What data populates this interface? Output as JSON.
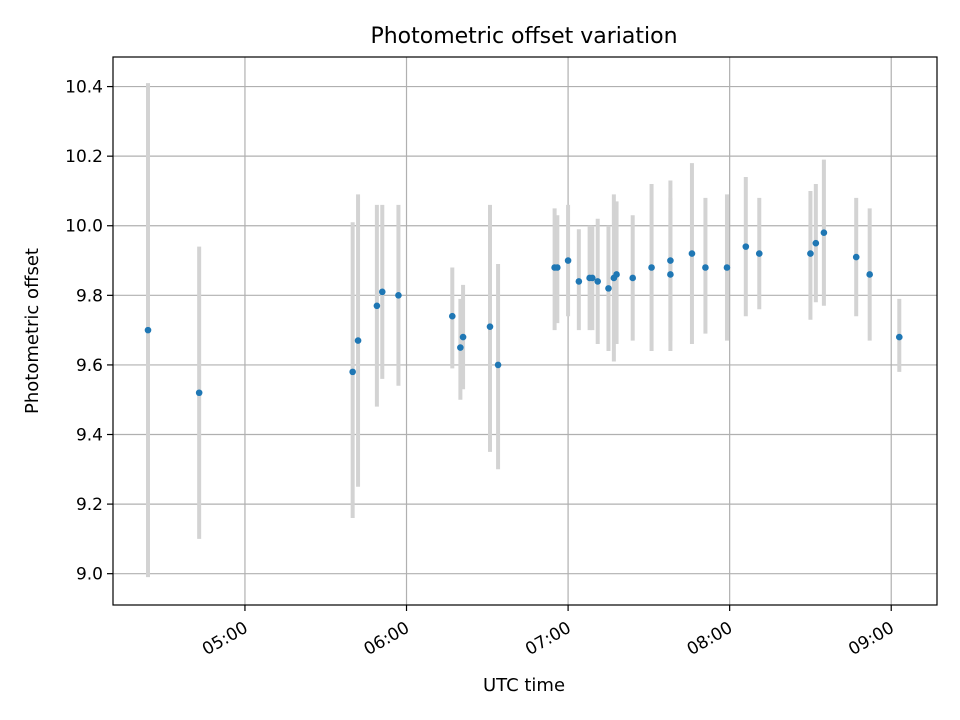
{
  "chart_data": {
    "type": "scatter",
    "title": "Photometric offset variation",
    "xlabel": "UTC time",
    "ylabel": "Photometric offset",
    "x_unit": "UTC hh:mm",
    "xlim": [
      "04:11",
      "09:17"
    ],
    "ylim": [
      8.91,
      10.485
    ],
    "grid": true,
    "x_ticks": [
      "05:00",
      "06:00",
      "07:00",
      "08:00",
      "09:00"
    ],
    "y_ticks": [
      "9.0",
      "9.2",
      "9.4",
      "9.6",
      "9.8",
      "10.0",
      "10.2",
      "10.4"
    ],
    "colors": {
      "point": "#1f77b4",
      "errorbar": "#d3d3d3",
      "grid": "#b0b0b0"
    },
    "points": [
      {
        "t": "04:24",
        "y": 9.7,
        "lo": 8.99,
        "hi": 10.41
      },
      {
        "t": "04:43",
        "y": 9.52,
        "lo": 9.1,
        "hi": 9.94
      },
      {
        "t": "05:40",
        "y": 9.58,
        "lo": 9.16,
        "hi": 10.01
      },
      {
        "t": "05:42",
        "y": 9.67,
        "lo": 9.25,
        "hi": 10.09
      },
      {
        "t": "05:49",
        "y": 9.77,
        "lo": 9.48,
        "hi": 10.06
      },
      {
        "t": "05:51",
        "y": 9.81,
        "lo": 9.56,
        "hi": 10.06
      },
      {
        "t": "05:57",
        "y": 9.8,
        "lo": 9.54,
        "hi": 10.06
      },
      {
        "t": "06:17",
        "y": 9.74,
        "lo": 9.59,
        "hi": 9.88
      },
      {
        "t": "06:20",
        "y": 9.65,
        "lo": 9.5,
        "hi": 9.79
      },
      {
        "t": "06:21",
        "y": 9.68,
        "lo": 9.53,
        "hi": 9.83
      },
      {
        "t": "06:31",
        "y": 9.71,
        "lo": 9.35,
        "hi": 10.06
      },
      {
        "t": "06:34",
        "y": 9.6,
        "lo": 9.3,
        "hi": 9.89
      },
      {
        "t": "06:55",
        "y": 9.88,
        "lo": 9.7,
        "hi": 10.05
      },
      {
        "t": "06:56",
        "y": 9.88,
        "lo": 9.72,
        "hi": 10.03
      },
      {
        "t": "07:00",
        "y": 9.9,
        "lo": 9.74,
        "hi": 10.06
      },
      {
        "t": "07:04",
        "y": 9.84,
        "lo": 9.7,
        "hi": 9.99
      },
      {
        "t": "07:08",
        "y": 9.85,
        "lo": 9.7,
        "hi": 10.0
      },
      {
        "t": "07:09",
        "y": 9.85,
        "lo": 9.7,
        "hi": 10.0
      },
      {
        "t": "07:11",
        "y": 9.84,
        "lo": 9.66,
        "hi": 10.02
      },
      {
        "t": "07:15",
        "y": 9.82,
        "lo": 9.64,
        "hi": 10.0
      },
      {
        "t": "07:17",
        "y": 9.85,
        "lo": 9.61,
        "hi": 10.09
      },
      {
        "t": "07:18",
        "y": 9.86,
        "lo": 9.66,
        "hi": 10.07
      },
      {
        "t": "07:24",
        "y": 9.85,
        "lo": 9.67,
        "hi": 10.03
      },
      {
        "t": "07:31",
        "y": 9.88,
        "lo": 9.64,
        "hi": 10.12
      },
      {
        "t": "07:38",
        "y": 9.86,
        "lo": 9.64,
        "hi": 10.08
      },
      {
        "t": "07:38",
        "y": 9.9,
        "lo": 9.67,
        "hi": 10.13
      },
      {
        "t": "07:46",
        "y": 9.92,
        "lo": 9.66,
        "hi": 10.18
      },
      {
        "t": "07:51",
        "y": 9.88,
        "lo": 9.69,
        "hi": 10.08
      },
      {
        "t": "07:59",
        "y": 9.88,
        "lo": 9.67,
        "hi": 10.09
      },
      {
        "t": "08:06",
        "y": 9.94,
        "lo": 9.74,
        "hi": 10.14
      },
      {
        "t": "08:11",
        "y": 9.92,
        "lo": 9.76,
        "hi": 10.08
      },
      {
        "t": "08:30",
        "y": 9.92,
        "lo": 9.73,
        "hi": 10.1
      },
      {
        "t": "08:32",
        "y": 9.95,
        "lo": 9.78,
        "hi": 10.12
      },
      {
        "t": "08:35",
        "y": 9.98,
        "lo": 9.77,
        "hi": 10.19
      },
      {
        "t": "08:47",
        "y": 9.91,
        "lo": 9.74,
        "hi": 10.08
      },
      {
        "t": "08:52",
        "y": 9.86,
        "lo": 9.67,
        "hi": 10.05
      },
      {
        "t": "09:03",
        "y": 9.68,
        "lo": 9.58,
        "hi": 9.79
      }
    ]
  }
}
